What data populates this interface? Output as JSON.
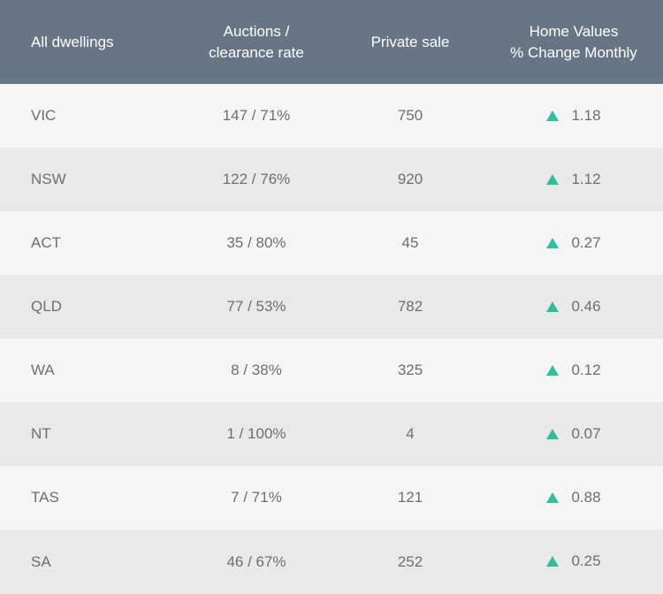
{
  "colors": {
    "header_bg": "#677685",
    "row_odd_bg": "#f5f5f5",
    "row_even_bg": "#e9e9e9",
    "up_arrow": "#2fbf9e",
    "text": "#6b6f72"
  },
  "header": {
    "col1": "All dwellings",
    "col2_line1": "Auctions /",
    "col2_line2": "clearance rate",
    "col3": "Private sale",
    "col4_line1": "Home Values",
    "col4_line2": "% Change Monthly"
  },
  "rows": [
    {
      "state": "VIC",
      "auctions": "147 / 71%",
      "private": "750",
      "change": "1.18",
      "trend_icon": "up-triangle-icon"
    },
    {
      "state": "NSW",
      "auctions": "122 / 76%",
      "private": "920",
      "change": "1.12",
      "trend_icon": "up-triangle-icon"
    },
    {
      "state": "ACT",
      "auctions": "35 / 80%",
      "private": "45",
      "change": "0.27",
      "trend_icon": "up-triangle-icon"
    },
    {
      "state": "QLD",
      "auctions": "77 / 53%",
      "private": "782",
      "change": "0.46",
      "trend_icon": "up-triangle-icon"
    },
    {
      "state": "WA",
      "auctions": "8 / 38%",
      "private": "325",
      "change": "0.12",
      "trend_icon": "up-triangle-icon"
    },
    {
      "state": "NT",
      "auctions": "1 / 100%",
      "private": "4",
      "change": "0.07",
      "trend_icon": "up-triangle-icon"
    },
    {
      "state": "TAS",
      "auctions": "7 / 71%",
      "private": "121",
      "change": "0.88",
      "trend_icon": "up-triangle-icon"
    },
    {
      "state": "SA",
      "auctions": "46 / 67%",
      "private": "252",
      "change": "0.25",
      "trend_icon": "up-triangle-icon"
    }
  ]
}
